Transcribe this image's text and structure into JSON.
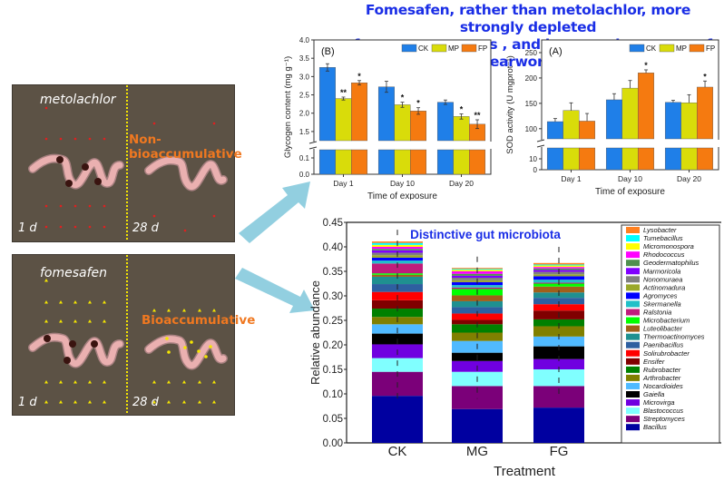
{
  "headline": {
    "line1": "Fomesafen, rather than metolachlor, more strongly depleted",
    "line2": "of energy resources , and increased enzymes of earworms"
  },
  "panels": [
    {
      "compound": "metolachlor",
      "dot_color": "#e02020",
      "left_time": "1 d",
      "right_time": "28 d",
      "right_label": "Non-bioaccumulative"
    },
    {
      "compound": "fomesafen",
      "dot_color": "#f5e600",
      "left_time": "1 d",
      "right_time": "28 d",
      "right_label": "Bioaccumulative"
    }
  ],
  "arrows": {
    "color": "#92cfe0"
  },
  "chart_data": [
    {
      "id": "glycogen",
      "type": "bar",
      "panel_label": "(B)",
      "title": "",
      "xlabel": "Time of exposure",
      "ylabel": "Glycogen content (mg g⁻¹)",
      "categories": [
        "Day 1",
        "Day 10",
        "Day 20"
      ],
      "series": [
        {
          "name": "CK",
          "color": "#1f7fe8",
          "values": [
            3.25,
            2.72,
            2.3
          ],
          "errors": [
            0.1,
            0.15,
            0.06
          ],
          "sig": [
            "",
            "",
            ""
          ]
        },
        {
          "name": "MP",
          "color": "#d9dc0a",
          "values": [
            2.4,
            2.23,
            1.91
          ],
          "errors": [
            0.04,
            0.07,
            0.07
          ],
          "sig": [
            "**",
            "*",
            "*"
          ]
        },
        {
          "name": "FP",
          "color": "#f57a10",
          "values": [
            2.83,
            2.06,
            1.7
          ],
          "errors": [
            0.06,
            0.09,
            0.12
          ],
          "sig": [
            "*",
            "*",
            "**"
          ]
        }
      ],
      "axis_break": {
        "lower": [
          0.0,
          0.15
        ],
        "upper": [
          1.25,
          4.0
        ]
      },
      "yticks_lower": [
        "0.0",
        "0.1"
      ],
      "yticks_upper": [
        "1.5",
        "2.0",
        "2.5",
        "3.0",
        "3.5",
        "4.0"
      ],
      "legend": "top-right"
    },
    {
      "id": "sod",
      "type": "bar",
      "panel_label": "(A)",
      "title": "",
      "xlabel": "Time of exposure",
      "ylabel": "SOD activity (U mgprot⁻¹)",
      "categories": [
        "Day 1",
        "Day 10",
        "Day 20"
      ],
      "series": [
        {
          "name": "CK",
          "color": "#1f7fe8",
          "values": [
            114,
            157,
            152
          ],
          "errors": [
            6,
            12,
            4
          ],
          "sig": [
            "",
            "",
            ""
          ]
        },
        {
          "name": "MP",
          "color": "#d9dc0a",
          "values": [
            136,
            180,
            151
          ],
          "errors": [
            15,
            15,
            16
          ],
          "sig": [
            "",
            "",
            ""
          ]
        },
        {
          "name": "FP",
          "color": "#f57a10",
          "values": [
            115,
            210,
            182
          ],
          "errors": [
            15,
            6,
            12
          ],
          "sig": [
            "",
            "*",
            "*"
          ]
        }
      ],
      "axis_break": {
        "lower": [
          0,
          20
        ],
        "upper": [
          80,
          275
        ]
      },
      "yticks_lower": [
        "0",
        "10"
      ],
      "yticks_upper": [
        "100",
        "150",
        "200",
        "250"
      ],
      "legend": "top-right"
    },
    {
      "id": "microbiota",
      "type": "bar",
      "stacked": true,
      "title": "Distinctive gut microbiota",
      "xlabel": "Treatment",
      "ylabel": "Relative abundance",
      "ylim": [
        0,
        0.45
      ],
      "yticks": [
        "0.00",
        "0.05",
        "0.10",
        "0.15",
        "0.20",
        "0.25",
        "0.30",
        "0.35",
        "0.40",
        "0.45"
      ],
      "categories": [
        "CK",
        "MG",
        "FG"
      ],
      "legend": "right",
      "series": [
        {
          "name": "Bacillus",
          "color": "#0000a0",
          "values": [
            0.096,
            0.069,
            0.072
          ]
        },
        {
          "name": "Streptomyces",
          "color": "#7b0079",
          "values": [
            0.049,
            0.047,
            0.044
          ]
        },
        {
          "name": "Blastococcus",
          "color": "#80ffff",
          "values": [
            0.028,
            0.029,
            0.034
          ]
        },
        {
          "name": "Microvirga",
          "color": "#7000e0",
          "values": [
            0.028,
            0.022,
            0.021
          ]
        },
        {
          "name": "Gaiella",
          "color": "#000000",
          "values": [
            0.022,
            0.017,
            0.026
          ]
        },
        {
          "name": "Nocardioides",
          "color": "#50baff",
          "values": [
            0.019,
            0.024,
            0.02
          ]
        },
        {
          "name": "Arthrobacter",
          "color": "#808000",
          "values": [
            0.015,
            0.017,
            0.021
          ]
        },
        {
          "name": "Rubrobacter",
          "color": "#008000",
          "values": [
            0.017,
            0.017,
            0.014
          ]
        },
        {
          "name": "Ensifer",
          "color": "#800000",
          "values": [
            0.017,
            0.009,
            0.018
          ]
        },
        {
          "name": "Solirubrobacter",
          "color": "#ff0000",
          "values": [
            0.017,
            0.013,
            0.013
          ]
        },
        {
          "name": "Paenibacillus",
          "color": "#2e5fa0",
          "values": [
            0.016,
            0.013,
            0.013
          ]
        },
        {
          "name": "Thermoactinomyces",
          "color": "#1f9090",
          "values": [
            0.015,
            0.012,
            0.011
          ]
        },
        {
          "name": "Luteolibacter",
          "color": "#a0601a",
          "values": [
            0.004,
            0.012,
            0.012
          ]
        },
        {
          "name": "Microbacterium",
          "color": "#00ff00",
          "values": [
            0.003,
            0.013,
            0.006
          ]
        },
        {
          "name": "Ralstonia",
          "color": "#c01c7c",
          "values": [
            0.02,
            0.003,
            0.002
          ]
        },
        {
          "name": "Skermanella",
          "color": "#20c0c8",
          "values": [
            0.006,
            0.005,
            0.006
          ]
        },
        {
          "name": "Agromyces",
          "color": "#0000ff",
          "values": [
            0.006,
            0.006,
            0.007
          ]
        },
        {
          "name": "Actinomadura",
          "color": "#9aa82a",
          "values": [
            0.005,
            0.004,
            0.004
          ]
        },
        {
          "name": "Nonomuraea",
          "color": "#808080",
          "values": [
            0.005,
            0.005,
            0.005
          ]
        },
        {
          "name": "Marmoricola",
          "color": "#8000ff",
          "values": [
            0.005,
            0.004,
            0.004
          ]
        },
        {
          "name": "Geodermatophilus",
          "color": "#4f8f4f",
          "values": [
            0.003,
            0.004,
            0.003
          ]
        },
        {
          "name": "Rhodococcus",
          "color": "#ff00ff",
          "values": [
            0.004,
            0.005,
            0.003
          ]
        },
        {
          "name": "Micromonospora",
          "color": "#ffff00",
          "values": [
            0.004,
            0.003,
            0.003
          ]
        },
        {
          "name": "Tumebacillus",
          "color": "#00ffff",
          "values": [
            0.004,
            0.002,
            0.002
          ]
        },
        {
          "name": "Lysobacter",
          "color": "#ff8020",
          "values": [
            0.003,
            0.002,
            0.003
          ]
        }
      ],
      "error_bar_tops": [
        0.435,
        0.38,
        0.4
      ]
    }
  ]
}
